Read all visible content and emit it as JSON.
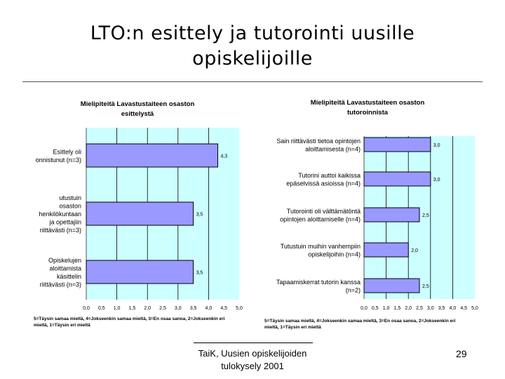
{
  "slide": {
    "title_line1": "LTO:n esittely ja tutorointi uusille",
    "title_line2": "opiskelijoille",
    "footer_line1": "TaiK, Uusien opiskelijoiden",
    "footer_line2": "tulokysely 2001",
    "page_number": "29"
  },
  "chart_data": [
    {
      "type": "bar",
      "orientation": "horizontal",
      "title": [
        "Mielipiteitä Lavastustaiteen osaston",
        "esittelystä"
      ],
      "categories": [
        [
          "Esittely oli",
          "onnistunut (n=3)"
        ],
        [
          "utustuin",
          "osaston",
          "henkilökuntaan",
          "ja opettajiin",
          "riittävästi (n=3)"
        ],
        [
          "Opiskelujen",
          "aloittamista",
          "käsittelin",
          "riittävästi (n=3)"
        ]
      ],
      "values": [
        4.3,
        3.5,
        3.5
      ],
      "value_labels": [
        "4,3",
        "3,5",
        "3,5"
      ],
      "xlim": [
        0,
        5
      ],
      "ticks": [
        "0,0",
        "0,5",
        "1,0",
        "1,5",
        "2,0",
        "2,5",
        "3,0",
        "3,5",
        "4,0",
        "4,5",
        "5,0"
      ],
      "note": [
        "5=Täysin samaa mieltä, 4=Jokseenkin samaa mieltä, 3=En osaa sanoa, 2=Jokseenkin eri",
        "mieltä, 1=Täysin eri mieltä"
      ],
      "colors": {
        "bar": "#9999ff",
        "plot_bg": "#ccffff"
      }
    },
    {
      "type": "bar",
      "orientation": "horizontal",
      "title": [
        "Mielipiteitä Lavastustaiteen osaston",
        "tutoroinnista"
      ],
      "categories": [
        [
          "Sain riittävästi tietoa opintojen",
          "aloittamisesta (n=4)"
        ],
        [
          "Tutorini auttoi kaikissa",
          "epäselvissä asioissa (n=4)"
        ],
        [
          "Tutorointi oli välttämätöntä",
          "opintojen aloittamiselle (n=4)"
        ],
        [
          "Tutustuin muihin vanhempiin",
          "opiskelijoihin (n=4)"
        ],
        [
          "Tapaamiskerrat tutorin kanssa",
          "(n=2)"
        ]
      ],
      "values": [
        3.0,
        3.0,
        2.5,
        2.0,
        2.5
      ],
      "value_labels": [
        "3,0",
        "3,0",
        "2,5",
        "2,0",
        "2,5"
      ],
      "xlim": [
        0,
        5
      ],
      "ticks": [
        "0,0",
        "0,5",
        "1,0",
        "1,5",
        "2,0",
        "2,5",
        "3,0",
        "3,5",
        "4,0",
        "4,5",
        "5,0"
      ],
      "note": [
        "5=Täysin samaa mieltä, 4=Jokseenkin samaa mieltä, 3=En osaa sanoa, 2=Jokseenkin eri",
        "mieltä, 1=Täysin eri mieltä"
      ],
      "colors": {
        "bar": "#9999ff",
        "plot_bg": "#ccffff"
      }
    }
  ]
}
